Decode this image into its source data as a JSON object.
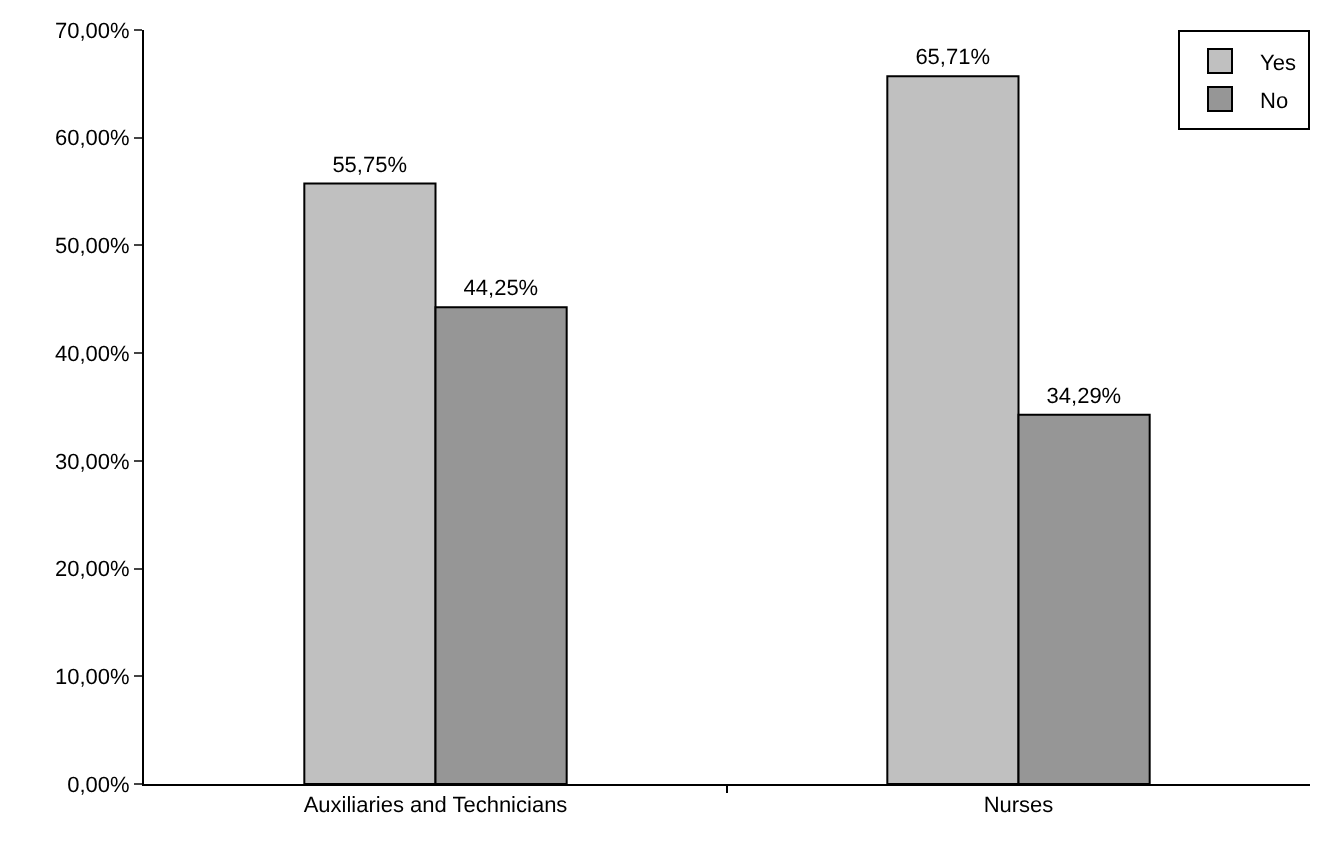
{
  "chart_data": {
    "type": "bar",
    "categories": [
      "Auxiliaries and Technicians",
      "Nurses"
    ],
    "series": [
      {
        "name": "Yes",
        "color": "#c0c0c0",
        "values": [
          55.75,
          65.71
        ],
        "value_labels": [
          "55,75%",
          "65,71%"
        ]
      },
      {
        "name": "No",
        "color": "#969696",
        "values": [
          44.25,
          34.29
        ],
        "value_labels": [
          "44,25%",
          "34,29%"
        ]
      }
    ],
    "ylim": [
      0,
      70
    ],
    "yticks": [
      {
        "value": 0,
        "label": "0,00%"
      },
      {
        "value": 10,
        "label": "10,00%"
      },
      {
        "value": 20,
        "label": "20,00%"
      },
      {
        "value": 30,
        "label": "30,00%"
      },
      {
        "value": 40,
        "label": "40,00%"
      },
      {
        "value": 50,
        "label": "50,00%"
      },
      {
        "value": 60,
        "label": "60,00%"
      },
      {
        "value": 70,
        "label": "70,00%"
      }
    ],
    "legend": "top right"
  }
}
